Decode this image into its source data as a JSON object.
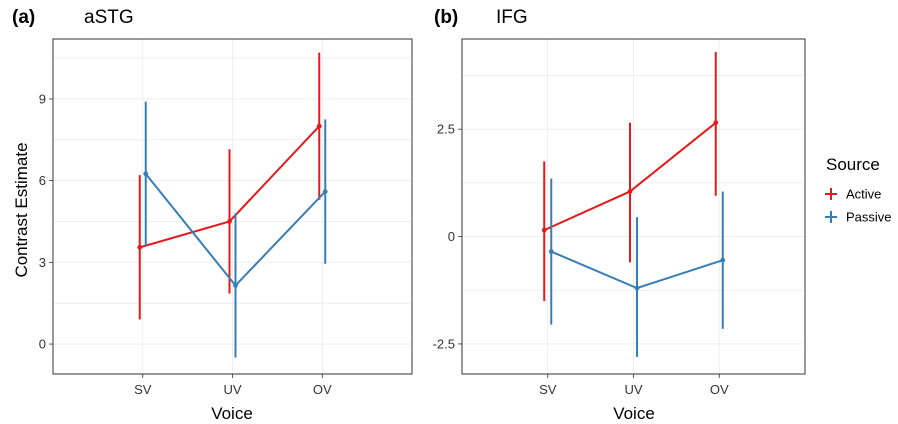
{
  "chart_data": [
    {
      "type": "line",
      "panel_tag": "(a)",
      "title": "aSTG",
      "xlabel": "Voice",
      "ylabel": "Contrast Estimate",
      "categories": [
        "SV",
        "UV",
        "OV"
      ],
      "ylim": [
        -1.1,
        11.2
      ],
      "yticks": [
        "0",
        "3",
        "6",
        "9"
      ],
      "grid": true,
      "series": [
        {
          "name": "Active",
          "color": "#e41a1c",
          "values": [
            3.55,
            4.5,
            8.0
          ],
          "lower": [
            0.9,
            1.85,
            5.3
          ],
          "upper": [
            6.2,
            7.15,
            10.7
          ]
        },
        {
          "name": "Passive",
          "color": "#377eb8",
          "values": [
            6.25,
            2.15,
            5.6
          ],
          "lower": [
            3.6,
            -0.5,
            2.95
          ],
          "upper": [
            8.9,
            4.8,
            8.25
          ]
        }
      ]
    },
    {
      "type": "line",
      "panel_tag": "(b)",
      "title": "IFG",
      "xlabel": "Voice",
      "ylabel": "",
      "categories": [
        "SV",
        "UV",
        "OV"
      ],
      "ylim": [
        -3.2,
        4.6
      ],
      "yticks": [
        "-2.5",
        "0",
        "2.5"
      ],
      "grid": true,
      "series": [
        {
          "name": "Active",
          "color": "#e41a1c",
          "values": [
            0.15,
            1.05,
            2.65
          ],
          "lower": [
            -1.5,
            -0.6,
            0.95
          ],
          "upper": [
            1.75,
            2.65,
            4.3
          ]
        },
        {
          "name": "Passive",
          "color": "#377eb8",
          "values": [
            -0.35,
            -1.2,
            -0.55
          ],
          "lower": [
            -2.05,
            -2.8,
            -2.15
          ],
          "upper": [
            1.35,
            0.45,
            1.05
          ]
        }
      ]
    }
  ],
  "legend": {
    "title": "Source",
    "placement": "right",
    "items": [
      {
        "label": "Active",
        "color": "#e41a1c"
      },
      {
        "label": "Passive",
        "color": "#377eb8"
      }
    ]
  }
}
